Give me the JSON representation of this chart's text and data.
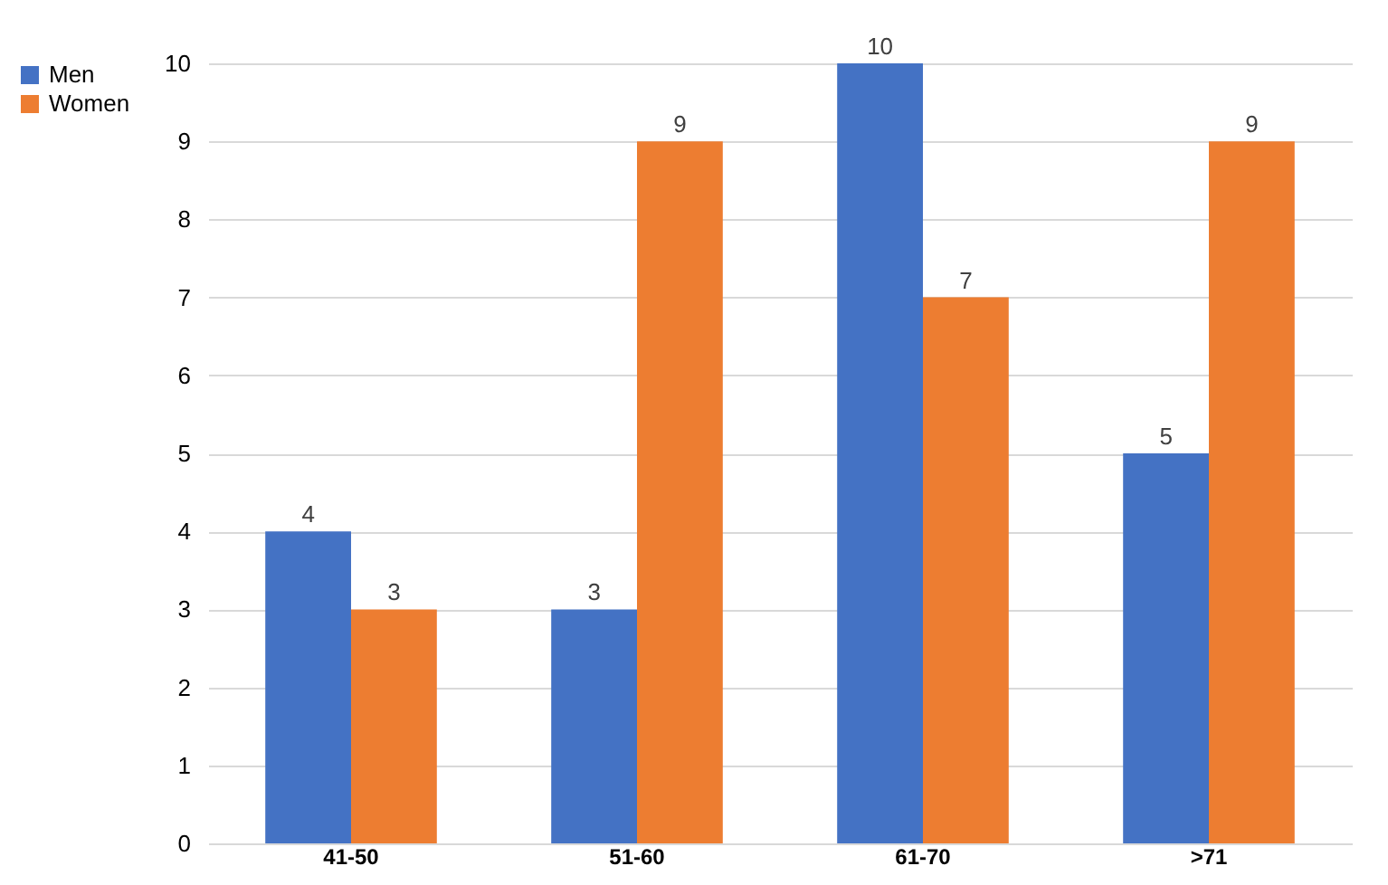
{
  "chart_data": {
    "type": "bar",
    "categories": [
      "41-50",
      "51-60",
      "61-70",
      ">71"
    ],
    "series": [
      {
        "name": "Men",
        "color": "#4472c4",
        "values": [
          4,
          3,
          10,
          5
        ]
      },
      {
        "name": "Women",
        "color": "#ed7d31",
        "values": [
          3,
          9,
          7,
          9
        ]
      }
    ],
    "ylim": [
      0,
      10
    ],
    "yticks": [
      0,
      1,
      2,
      3,
      4,
      5,
      6,
      7,
      8,
      9,
      10
    ],
    "grid": true,
    "legend": "left",
    "data_labels": true
  }
}
